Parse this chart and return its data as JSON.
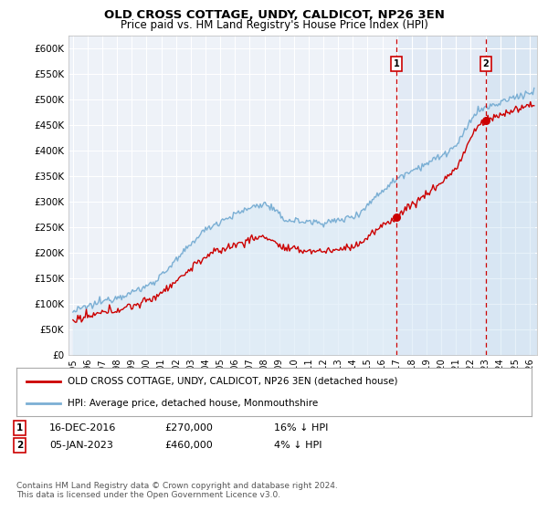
{
  "title": "OLD CROSS COTTAGE, UNDY, CALDICOT, NP26 3EN",
  "subtitle": "Price paid vs. HM Land Registry's House Price Index (HPI)",
  "ylabel_ticks": [
    "£0",
    "£50K",
    "£100K",
    "£150K",
    "£200K",
    "£250K",
    "£300K",
    "£350K",
    "£400K",
    "£450K",
    "£500K",
    "£550K",
    "£600K"
  ],
  "ylim": [
    0,
    625000
  ],
  "ytick_values": [
    0,
    50000,
    100000,
    150000,
    200000,
    250000,
    300000,
    350000,
    400000,
    450000,
    500000,
    550000,
    600000
  ],
  "xlim_start": 1994.7,
  "xlim_end": 2026.5,
  "sale1_x": 2016.96,
  "sale1_y": 270000,
  "sale2_x": 2023.02,
  "sale2_y": 460000,
  "sale1_label": "16-DEC-2016",
  "sale1_price": "£270,000",
  "sale1_hpi": "16% ↓ HPI",
  "sale2_label": "05-JAN-2023",
  "sale2_price": "£460,000",
  "sale2_hpi": "4% ↓ HPI",
  "legend_line1": "OLD CROSS COTTAGE, UNDY, CALDICOT, NP26 3EN (detached house)",
  "legend_line2": "HPI: Average price, detached house, Monmouthshire",
  "footnote": "Contains HM Land Registry data © Crown copyright and database right 2024.\nThis data is licensed under the Open Government Licence v3.0.",
  "property_color": "#cc0000",
  "hpi_color": "#7bafd4",
  "hpi_fill_color": "#d8e8f5",
  "background_color": "#ffffff",
  "plot_bg_color": "#eef2f8",
  "grid_color": "#ffffff",
  "marker_box_color": "#cc0000",
  "vline_color": "#cc0000",
  "shade_color": "#dde8f5",
  "xtick_years": [
    1995,
    1996,
    1997,
    1998,
    1999,
    2000,
    2001,
    2002,
    2003,
    2004,
    2005,
    2006,
    2007,
    2008,
    2009,
    2010,
    2011,
    2012,
    2013,
    2014,
    2015,
    2016,
    2017,
    2018,
    2019,
    2020,
    2021,
    2022,
    2023,
    2024,
    2025,
    2026
  ]
}
